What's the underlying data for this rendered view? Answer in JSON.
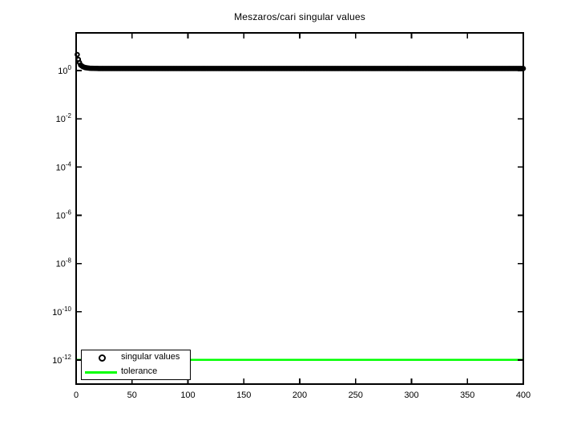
{
  "figure": {
    "background_color": "#ffffff",
    "axis_color": "#000000"
  },
  "chart_data": {
    "type": "scatter",
    "title": "Meszaros/cari singular values",
    "xlabel": "",
    "ylabel": "",
    "grid": false,
    "x_axis": {
      "scale": "linear",
      "min": 0,
      "max": 400,
      "ticks": [
        0,
        50,
        100,
        150,
        200,
        250,
        300,
        350,
        400
      ]
    },
    "y_axis": {
      "scale": "log",
      "tick_exponents": [
        0,
        -2,
        -4,
        -6,
        -8,
        -10,
        -12
      ],
      "tick_base": "10",
      "ylim_approx": [
        1e-13,
        36
      ]
    },
    "series": [
      {
        "name": "singular values",
        "style": "scatter",
        "marker": "open-circle",
        "color": "#000000",
        "n_points": 400,
        "x_start": 1,
        "x_end": 400,
        "anchors_x": [
          1,
          2,
          3,
          4,
          6,
          8,
          12,
          20,
          400
        ],
        "anchors_value": [
          4.6,
          2.9,
          2.15,
          1.7,
          1.45,
          1.33,
          1.25,
          1.22,
          1.22
        ]
      },
      {
        "name": "tolerance",
        "style": "line",
        "color": "#00ff00",
        "value": 1e-12,
        "x_start": 0,
        "x_end": 400
      }
    ],
    "legend_position": "southwest"
  },
  "legend": {
    "items": [
      {
        "label": "singular values",
        "marker": "open-circle",
        "color": "#000000"
      },
      {
        "label": "tolerance",
        "marker": "line",
        "color": "#00ff00"
      }
    ]
  }
}
